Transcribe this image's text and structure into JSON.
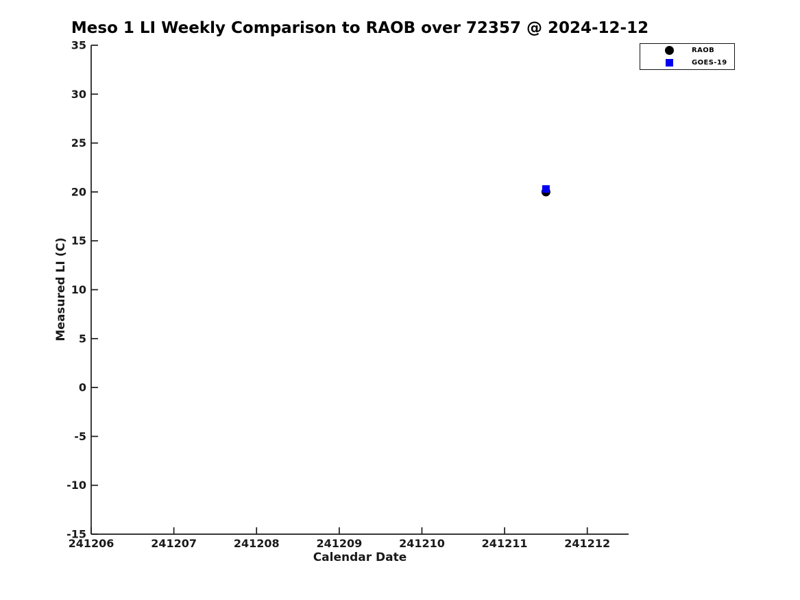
{
  "page": {
    "background": "#ffffff"
  },
  "chart_data": {
    "type": "scatter",
    "title": "Meso 1 LI Weekly Comparison to RAOB over 72357 @ 2024-12-12",
    "xlabel": "Calendar Date",
    "ylabel": "Measured LI (C)",
    "xlim": [
      241206,
      241212.5
    ],
    "ylim": [
      -15,
      35
    ],
    "xticks": [
      241206,
      241207,
      241208,
      241209,
      241210,
      241211,
      241212
    ],
    "yticks": [
      -15,
      -10,
      -5,
      0,
      5,
      10,
      15,
      20,
      25,
      30,
      35
    ],
    "grid": false,
    "axis_color": "#1a1a1a",
    "legend_position": "outside-top-right",
    "series": [
      {
        "name": "RAOB",
        "marker": "circle",
        "color": "#000000",
        "marker_size": 13,
        "points": [
          {
            "x": 241211.5,
            "y": 20.0
          }
        ]
      },
      {
        "name": "GOES-19",
        "marker": "square",
        "color": "#0000ee",
        "marker_size": 11,
        "points": [
          {
            "x": 241211.5,
            "y": 20.3
          }
        ]
      }
    ]
  }
}
